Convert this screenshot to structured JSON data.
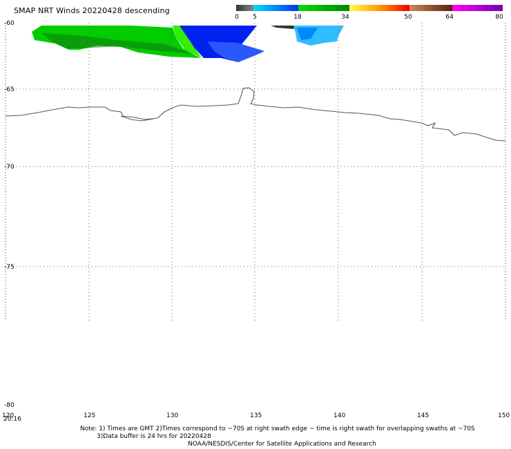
{
  "header": {
    "title": "SMAP NRT Winds  20220428 descending"
  },
  "colorbar": {
    "segments": [
      {
        "from": 0,
        "to": 5,
        "color": "#555555"
      },
      {
        "from": 5,
        "to": 18,
        "color": "gradient-cyan-blue"
      },
      {
        "from": 18,
        "to": 34,
        "color": "gradient-green"
      },
      {
        "from": 34,
        "to": 50,
        "color": "gradient-yellow-red"
      },
      {
        "from": 50,
        "to": 64,
        "color": "gradient-brown"
      },
      {
        "from": 64,
        "to": 80,
        "color": "gradient-magenta-purple"
      }
    ],
    "labels": [
      "0",
      "5",
      "18",
      "34",
      "50",
      "64",
      "80"
    ]
  },
  "axes": {
    "lat_labels": [
      "-60",
      "-65",
      "-70",
      "-75",
      "-80"
    ],
    "lon_labels": [
      "120",
      "125",
      "130",
      "135",
      "140",
      "145",
      "150"
    ],
    "time_label": "20:16"
  },
  "notes": {
    "line1": "Note: 1) Times are GMT 2)Times correspond to ~70S at right swath edge ~ time is right swath for overlapping swaths at ~70S",
    "line2": "3)Data buffer is 24 hrs for 20220428",
    "line3": "NOAA/NESDIS/Center for Satellite Applications and Research"
  },
  "map": {
    "region": "Antarctic coast, 120E-150E, 60S-80S",
    "swath_colors": {
      "green": "#00cc00",
      "blue": "#0022ee",
      "cyan": "#33bbff"
    }
  }
}
